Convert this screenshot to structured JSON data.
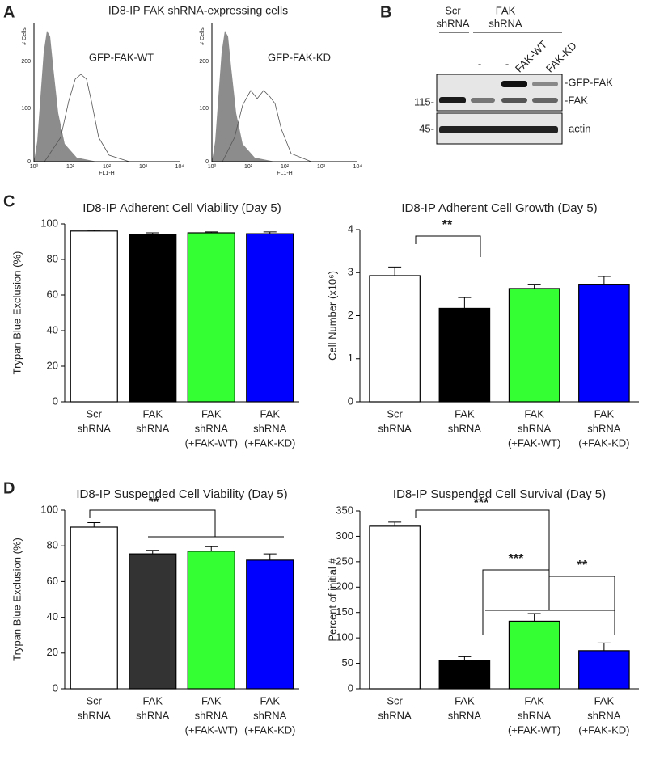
{
  "panel_labels": [
    "A",
    "B",
    "C",
    "D"
  ],
  "panel_a": {
    "title": "ID8-IP FAK shRNA-expressing cells",
    "plots": [
      {
        "label": "GFP-FAK-WT"
      },
      {
        "label": "GFP-FAK-KD"
      }
    ],
    "y_axis_label": "# Cells",
    "x_axis_label": "FL1-H",
    "yticks": [
      0,
      100,
      200
    ],
    "xticks": [
      "10⁰",
      "10¹",
      "10²",
      "10³",
      "10⁴"
    ]
  },
  "panel_b": {
    "groups": [
      [
        "Scr",
        "shRNA"
      ],
      [
        "FAK",
        "shRNA"
      ]
    ],
    "lanes": [
      "-",
      "-",
      "FAK-WT",
      "FAK-KD"
    ],
    "markers": [
      "115-",
      "45-"
    ],
    "bands": [
      "-GFP-FAK",
      "-FAK",
      "actin"
    ]
  },
  "chart_data": [
    {
      "type": "bar",
      "title": "ID8-IP Adherent Cell Viability (Day 5)",
      "y_label": "Trypan Blue Exclusion (%)",
      "categories": [
        [
          "Scr",
          "shRNA"
        ],
        [
          "FAK",
          "shRNA"
        ],
        [
          "FAK",
          "shRNA",
          "(+FAK-WT)"
        ],
        [
          "FAK",
          "shRNA",
          "(+FAK-KD)"
        ]
      ],
      "values": [
        96,
        94,
        95,
        94.5
      ],
      "errors": [
        0.5,
        1,
        0.5,
        1
      ],
      "colors": [
        "#ffffff",
        "#000000",
        "#33ff33",
        "#0000ff"
      ],
      "ylim": [
        0,
        100
      ],
      "yticks": [
        0,
        20,
        40,
        60,
        80,
        100
      ],
      "annotations": []
    },
    {
      "type": "bar",
      "title": "ID8-IP Adherent Cell Growth (Day 5)",
      "y_label": "Cell Number (x10⁶)",
      "categories": [
        [
          "Scr",
          "shRNA"
        ],
        [
          "FAK",
          "shRNA"
        ],
        [
          "FAK",
          "shRNA",
          "(+FAK-WT)"
        ],
        [
          "FAK",
          "shRNA",
          "(+FAK-KD)"
        ]
      ],
      "values": [
        2.93,
        2.17,
        2.63,
        2.73
      ],
      "errors": [
        0.2,
        0.25,
        0.1,
        0.18
      ],
      "colors": [
        "#ffffff",
        "#000000",
        "#33ff33",
        "#0000ff"
      ],
      "ylim": [
        0,
        4
      ],
      "yticks": [
        0,
        1,
        2,
        3,
        4
      ],
      "annotations": [
        "**"
      ]
    },
    {
      "type": "bar",
      "title": "ID8-IP Suspended Cell Viability (Day 5)",
      "y_label": "Trypan Blue Exclusion (%)",
      "categories": [
        [
          "Scr",
          "shRNA"
        ],
        [
          "FAK",
          "shRNA"
        ],
        [
          "FAK",
          "shRNA",
          "(+FAK-WT)"
        ],
        [
          "FAK",
          "shRNA",
          "(+FAK-KD)"
        ]
      ],
      "values": [
        90.5,
        75.5,
        77,
        72
      ],
      "errors": [
        2.5,
        2,
        2.5,
        3.5
      ],
      "colors": [
        "#ffffff",
        "#333333",
        "#33ff33",
        "#0000ff"
      ],
      "ylim": [
        0,
        100
      ],
      "yticks": [
        0,
        20,
        40,
        60,
        80,
        100
      ],
      "annotations": [
        "**"
      ]
    },
    {
      "type": "bar",
      "title": "ID8-IP Suspended Cell Survival (Day 5)",
      "y_label": "Percent of initial #",
      "categories": [
        [
          "Scr",
          "shRNA"
        ],
        [
          "FAK",
          "shRNA"
        ],
        [
          "FAK",
          "shRNA",
          "(+FAK-WT)"
        ],
        [
          "FAK",
          "shRNA",
          "(+FAK-KD)"
        ]
      ],
      "values": [
        320,
        55,
        133,
        75
      ],
      "errors": [
        8,
        8,
        15,
        15
      ],
      "colors": [
        "#ffffff",
        "#000000",
        "#33ff33",
        "#0000ff"
      ],
      "ylim": [
        0,
        350
      ],
      "yticks": [
        0,
        50,
        100,
        150,
        200,
        250,
        300,
        350
      ],
      "annotations": [
        "***",
        "***",
        "**"
      ]
    }
  ]
}
